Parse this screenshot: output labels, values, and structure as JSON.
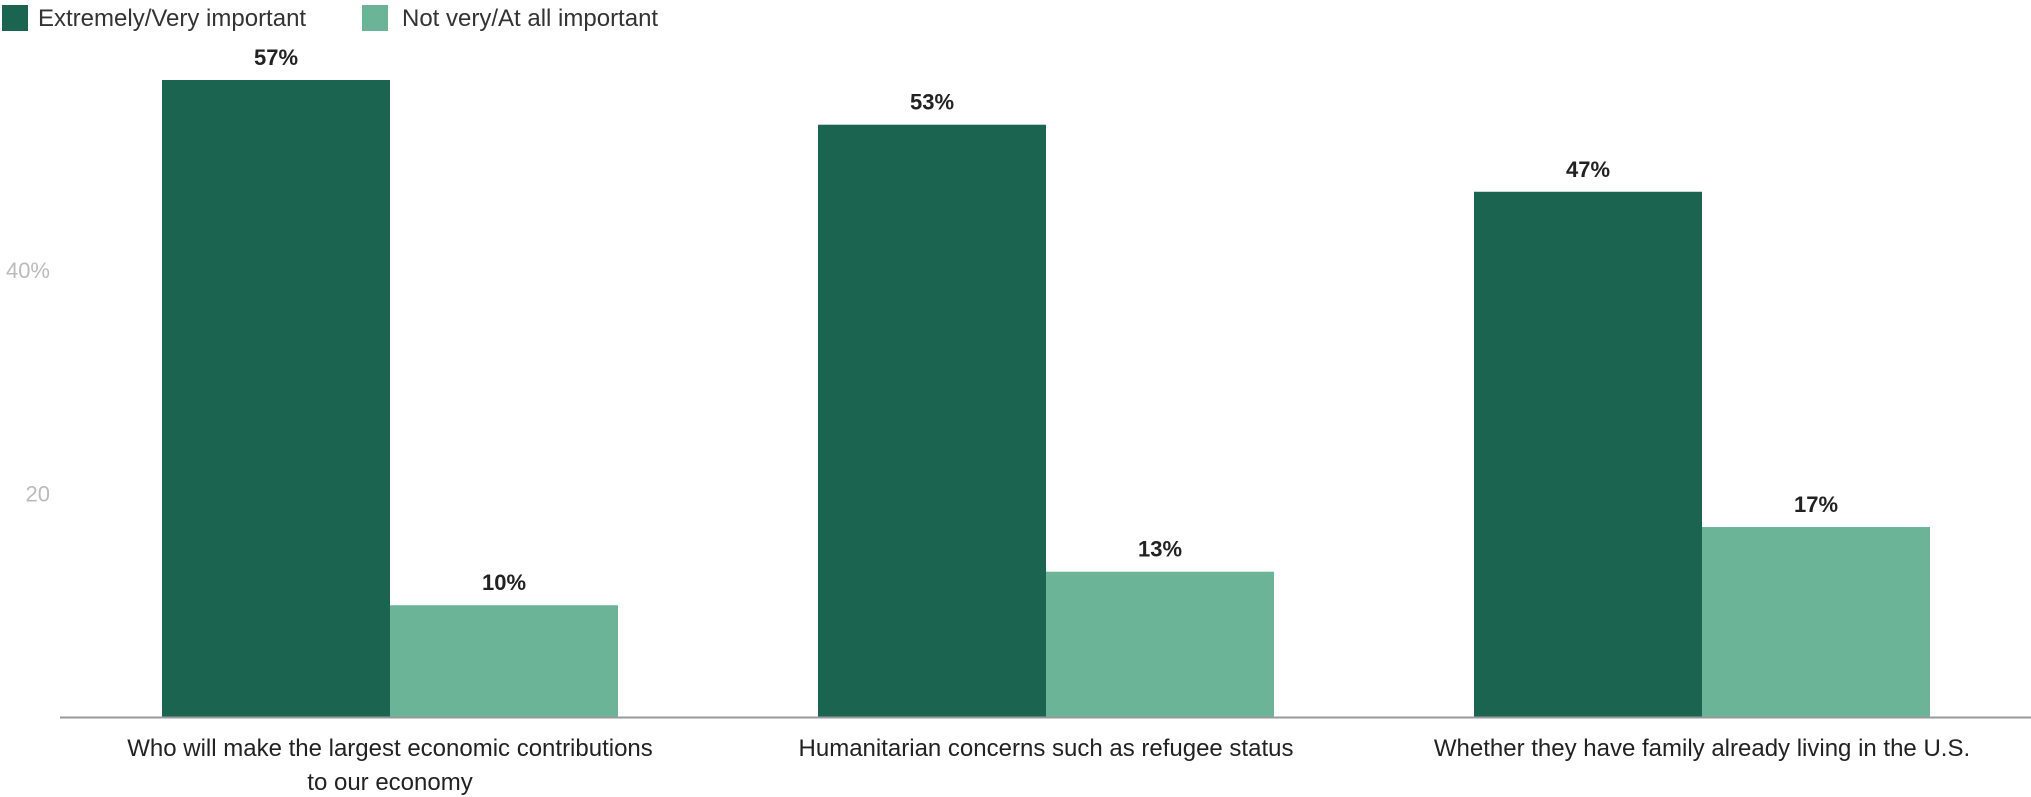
{
  "chart_data": {
    "type": "bar",
    "categories": [
      [
        "Who will make the largest economic contributions",
        "to our economy"
      ],
      [
        "Humanitarian concerns such as refugee status"
      ],
      [
        "Whether they have family already living in the U.S."
      ]
    ],
    "series": [
      {
        "name": "Extremely/Very important",
        "values": [
          57,
          53,
          47
        ],
        "labels": [
          "57%",
          "53%",
          "47%"
        ],
        "color": "#1b6550"
      },
      {
        "name": "Not very/At all important",
        "values": [
          10,
          13,
          17
        ],
        "labels": [
          "10%",
          "13%",
          "17%"
        ],
        "color": "#6cb498"
      }
    ],
    "yticks": [
      {
        "value": 20,
        "label": "20"
      },
      {
        "value": 40,
        "label": "40%"
      }
    ],
    "ylim": [
      0,
      57
    ],
    "grid": false,
    "legend": "top-left",
    "axis_color": "#999999"
  }
}
